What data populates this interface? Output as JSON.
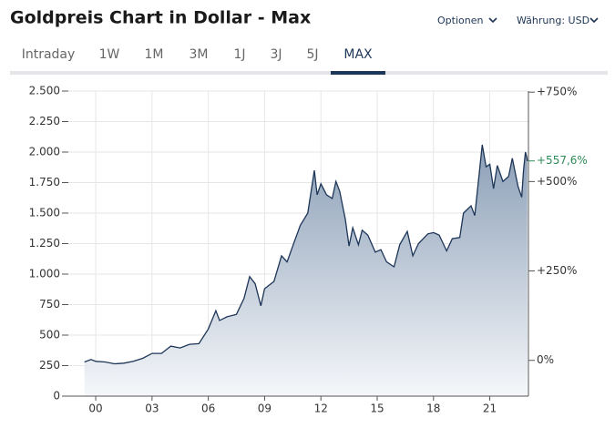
{
  "header": {
    "options": "Optionen",
    "currency": "Währung: USD"
  },
  "tabs": [
    "Intraday",
    "1W",
    "1M",
    "3M",
    "1J",
    "3J",
    "5J",
    "MAX"
  ],
  "active_tab": "MAX",
  "chart_data": {
    "type": "area",
    "title": "Goldpreis Chart in Dollar - Max",
    "color": "#1d3557",
    "x": [
      1999.4,
      1999.75,
      2000,
      2000.5,
      2001,
      2001.5,
      2002,
      2002.5,
      2003,
      2003.5,
      2004,
      2004.5,
      2005,
      2005.5,
      2006,
      2006.4,
      2006.6,
      2007,
      2007.5,
      2007.9,
      2008.2,
      2008.5,
      2008.8,
      2009,
      2009.5,
      2009.9,
      2010.2,
      2010.5,
      2010.9,
      2011.3,
      2011.65,
      2011.8,
      2012,
      2012.3,
      2012.6,
      2012.8,
      2013,
      2013.3,
      2013.5,
      2013.7,
      2014,
      2014.2,
      2014.5,
      2014.9,
      2015.2,
      2015.5,
      2015.9,
      2016.2,
      2016.6,
      2016.9,
      2017.2,
      2017.7,
      2018,
      2018.3,
      2018.7,
      2019,
      2019.4,
      2019.6,
      2020,
      2020.2,
      2020.6,
      2020.8,
      2021,
      2021.2,
      2021.4,
      2021.7,
      2022,
      2022.2,
      2022.5,
      2022.7,
      2022.8,
      2022.9,
      2022.97,
      2023.0
    ],
    "values": [
      280,
      300,
      285,
      280,
      265,
      270,
      285,
      310,
      350,
      350,
      410,
      395,
      425,
      430,
      550,
      700,
      620,
      650,
      670,
      800,
      980,
      920,
      740,
      880,
      940,
      1150,
      1100,
      1230,
      1400,
      1500,
      1850,
      1650,
      1740,
      1650,
      1620,
      1760,
      1680,
      1450,
      1230,
      1380,
      1240,
      1360,
      1320,
      1180,
      1200,
      1100,
      1060,
      1240,
      1350,
      1150,
      1250,
      1330,
      1340,
      1320,
      1190,
      1290,
      1300,
      1500,
      1560,
      1480,
      2060,
      1880,
      1900,
      1700,
      1890,
      1760,
      1800,
      1950,
      1720,
      1630,
      1850,
      2000,
      1960,
      1927
    ],
    "xlim": [
      1998.54,
      2023.06
    ],
    "xticks": [
      {
        "value": 2000,
        "label": "00"
      },
      {
        "value": 2003,
        "label": "03"
      },
      {
        "value": 2006,
        "label": "06"
      },
      {
        "value": 2009,
        "label": "09"
      },
      {
        "value": 2012,
        "label": "12"
      },
      {
        "value": 2015,
        "label": "15"
      },
      {
        "value": 2018,
        "label": "18"
      },
      {
        "value": 2021,
        "label": "21"
      }
    ],
    "ylim": [
      0,
      2500
    ],
    "yticks": [
      0,
      250,
      500,
      750,
      {
        "value": 1000,
        "label": "1.000"
      },
      {
        "value": 1250,
        "label": "1.250"
      },
      {
        "value": 1500,
        "label": "1.500"
      },
      {
        "value": 1750,
        "label": "1.750"
      },
      {
        "value": 2000,
        "label": "2.000"
      },
      {
        "value": 2250,
        "label": "2.250"
      },
      {
        "value": 2500,
        "label": "2.500"
      }
    ],
    "y2lim": [
      -100,
      753
    ],
    "y2ticks": [
      {
        "value": 0,
        "label": "0%"
      },
      {
        "value": 250,
        "label": "+250%"
      },
      {
        "value": 500,
        "label": "+500%"
      },
      {
        "value": 750,
        "label": "+750%"
      }
    ],
    "change": {
      "value": 557.6,
      "label": "+557,6%"
    },
    "grid": true
  }
}
